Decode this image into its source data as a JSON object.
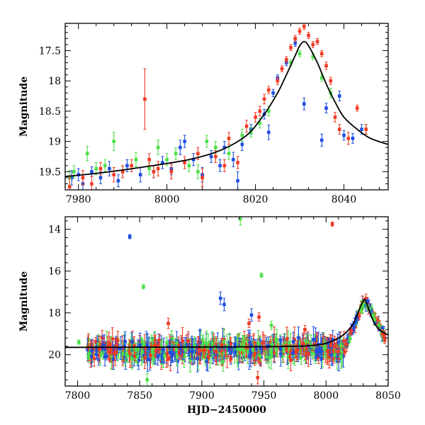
{
  "colors": {
    "blue": "#1f4fe0",
    "green": "#4ee04a",
    "red": "#f03a24",
    "model": "#000000"
  },
  "chart_data": [
    {
      "type": "scatter",
      "title": "",
      "xlabel": "",
      "ylabel": "Magnitude",
      "xlim": [
        7977,
        8050
      ],
      "ylim": [
        19.8,
        17.05
      ],
      "y_inverted": true,
      "xticks": [
        7980,
        8000,
        8020,
        8040
      ],
      "xtick_labels": [
        "7980",
        "8000",
        "8020",
        "8040"
      ],
      "yticks": [
        17.5,
        18,
        18.5,
        19,
        19.5
      ],
      "ytick_labels": [
        "17.5",
        "18",
        "18.5",
        "19",
        "19.5"
      ],
      "model_curve": {
        "x": [
          7977,
          7985,
          7995,
          8005,
          8012,
          8018,
          8022,
          8025,
          8027,
          8029,
          8030,
          8031,
          8032,
          8034,
          8036,
          8038,
          8040,
          8043,
          8046,
          8050
        ],
        "y": [
          19.58,
          19.52,
          19.42,
          19.3,
          19.15,
          18.9,
          18.55,
          18.2,
          17.9,
          17.58,
          17.42,
          17.35,
          17.42,
          17.7,
          18.05,
          18.35,
          18.6,
          18.8,
          18.95,
          19.05
        ]
      },
      "series": [
        {
          "color": "blue",
          "points": [
            {
              "x": 7978.5,
              "y": 19.6,
              "e": 0.12
            },
            {
              "x": 7980,
              "y": 19.55,
              "e": 0.1
            },
            {
              "x": 7981,
              "y": 19.7,
              "e": 0.15
            },
            {
              "x": 7983,
              "y": 19.5,
              "e": 0.08
            },
            {
              "x": 7985,
              "y": 19.6,
              "e": 0.1
            },
            {
              "x": 7987,
              "y": 19.45,
              "e": 0.12
            },
            {
              "x": 7989,
              "y": 19.65,
              "e": 0.1
            },
            {
              "x": 7991,
              "y": 19.4,
              "e": 0.1
            },
            {
              "x": 7994,
              "y": 19.55,
              "e": 0.12
            },
            {
              "x": 7997,
              "y": 19.5,
              "e": 0.1
            },
            {
              "x": 7999,
              "y": 19.35,
              "e": 0.1
            },
            {
              "x": 8001,
              "y": 19.45,
              "e": 0.1
            },
            {
              "x": 8003,
              "y": 19.1,
              "e": 0.12
            },
            {
              "x": 8004,
              "y": 19.0,
              "e": 0.1
            },
            {
              "x": 8006,
              "y": 19.3,
              "e": 0.1
            },
            {
              "x": 8008,
              "y": 19.55,
              "e": 0.12
            },
            {
              "x": 8010,
              "y": 19.25,
              "e": 0.1
            },
            {
              "x": 8012,
              "y": 19.4,
              "e": 0.1
            },
            {
              "x": 8013,
              "y": 19.1,
              "e": 0.1
            },
            {
              "x": 8015,
              "y": 19.3,
              "e": 0.12
            },
            {
              "x": 8016,
              "y": 19.65,
              "e": 0.15
            },
            {
              "x": 8017,
              "y": 19.05,
              "e": 0.1
            },
            {
              "x": 8019,
              "y": 18.8,
              "e": 0.08
            },
            {
              "x": 8022,
              "y": 18.55,
              "e": 0.08
            },
            {
              "x": 8023,
              "y": 18.85,
              "e": 0.12
            },
            {
              "x": 8024,
              "y": 18.2,
              "e": 0.06
            },
            {
              "x": 8025,
              "y": 17.95,
              "e": 0.05
            },
            {
              "x": 8027,
              "y": 17.7,
              "e": 0.05
            },
            {
              "x": 8029,
              "y": 17.38,
              "e": 0.05
            },
            {
              "x": 8031,
              "y": 18.38,
              "e": 0.1
            },
            {
              "x": 8035,
              "y": 18.98,
              "e": 0.1
            },
            {
              "x": 8036,
              "y": 18.45,
              "e": 0.08
            },
            {
              "x": 8039,
              "y": 18.25,
              "e": 0.08
            },
            {
              "x": 8040,
              "y": 18.9,
              "e": 0.08
            },
            {
              "x": 8042,
              "y": 18.95,
              "e": 0.08
            },
            {
              "x": 8044,
              "y": 18.8,
              "e": 0.08
            }
          ]
        },
        {
          "color": "green",
          "points": [
            {
              "x": 7978,
              "y": 19.6,
              "e": 0.12
            },
            {
              "x": 7979,
              "y": 19.5,
              "e": 0.1
            },
            {
              "x": 7982,
              "y": 19.2,
              "e": 0.12
            },
            {
              "x": 7984,
              "y": 19.45,
              "e": 0.1
            },
            {
              "x": 7986,
              "y": 19.4,
              "e": 0.1
            },
            {
              "x": 7988,
              "y": 19.0,
              "e": 0.15
            },
            {
              "x": 7990,
              "y": 19.5,
              "e": 0.1
            },
            {
              "x": 7993,
              "y": 19.3,
              "e": 0.12
            },
            {
              "x": 7996,
              "y": 19.45,
              "e": 0.1
            },
            {
              "x": 7998,
              "y": 19.1,
              "e": 0.12
            },
            {
              "x": 8000,
              "y": 19.3,
              "e": 0.1
            },
            {
              "x": 8002,
              "y": 19.2,
              "e": 0.1
            },
            {
              "x": 8005,
              "y": 19.4,
              "e": 0.1
            },
            {
              "x": 8007,
              "y": 19.5,
              "e": 0.12
            },
            {
              "x": 8009,
              "y": 19.0,
              "e": 0.1
            },
            {
              "x": 8011,
              "y": 19.1,
              "e": 0.1
            },
            {
              "x": 8014,
              "y": 19.2,
              "e": 0.1
            },
            {
              "x": 8017,
              "y": 18.9,
              "e": 0.1
            },
            {
              "x": 8019,
              "y": 18.85,
              "e": 0.08
            },
            {
              "x": 8021,
              "y": 18.7,
              "e": 0.08
            },
            {
              "x": 8023,
              "y": 18.5,
              "e": 0.08
            },
            {
              "x": 8028,
              "y": 17.7,
              "e": 0.05
            },
            {
              "x": 8030,
              "y": 17.55,
              "e": 0.05
            },
            {
              "x": 8033,
              "y": 17.6,
              "e": 0.05
            },
            {
              "x": 8035,
              "y": 17.95,
              "e": 0.06
            },
            {
              "x": 8037,
              "y": 18.2,
              "e": 0.08
            },
            {
              "x": 8045,
              "y": 18.8,
              "e": 0.08
            }
          ]
        },
        {
          "color": "red",
          "points": [
            {
              "x": 7978,
              "y": 19.75,
              "e": 0.15
            },
            {
              "x": 7981,
              "y": 19.6,
              "e": 0.12
            },
            {
              "x": 7983,
              "y": 19.7,
              "e": 0.12
            },
            {
              "x": 7985,
              "y": 19.45,
              "e": 0.1
            },
            {
              "x": 7988,
              "y": 19.55,
              "e": 0.12
            },
            {
              "x": 7990,
              "y": 19.5,
              "e": 0.1
            },
            {
              "x": 7992,
              "y": 19.4,
              "e": 0.1
            },
            {
              "x": 7995,
              "y": 18.3,
              "e": 0.5
            },
            {
              "x": 7996,
              "y": 19.3,
              "e": 0.1
            },
            {
              "x": 7997,
              "y": 19.5,
              "e": 0.1
            },
            {
              "x": 7998,
              "y": 19.45,
              "e": 0.12
            },
            {
              "x": 8001,
              "y": 19.5,
              "e": 0.12
            },
            {
              "x": 8004,
              "y": 19.35,
              "e": 0.1
            },
            {
              "x": 8007,
              "y": 19.2,
              "e": 0.1
            },
            {
              "x": 8008,
              "y": 19.6,
              "e": 0.15
            },
            {
              "x": 8011,
              "y": 19.25,
              "e": 0.1
            },
            {
              "x": 8013,
              "y": 19.4,
              "e": 0.1
            },
            {
              "x": 8014,
              "y": 18.95,
              "e": 0.1
            },
            {
              "x": 8016,
              "y": 19.35,
              "e": 0.1
            },
            {
              "x": 8018,
              "y": 18.75,
              "e": 0.1
            },
            {
              "x": 8020,
              "y": 18.6,
              "e": 0.08
            },
            {
              "x": 8021,
              "y": 18.5,
              "e": 0.08
            },
            {
              "x": 8022,
              "y": 18.3,
              "e": 0.08
            },
            {
              "x": 8023,
              "y": 18.15,
              "e": 0.06
            },
            {
              "x": 8025,
              "y": 18.0,
              "e": 0.06
            },
            {
              "x": 8026,
              "y": 17.8,
              "e": 0.05
            },
            {
              "x": 8027,
              "y": 17.65,
              "e": 0.05
            },
            {
              "x": 8028,
              "y": 17.45,
              "e": 0.05
            },
            {
              "x": 8029,
              "y": 17.3,
              "e": 0.05
            },
            {
              "x": 8030,
              "y": 17.18,
              "e": 0.05
            },
            {
              "x": 8031,
              "y": 17.1,
              "e": 0.05
            },
            {
              "x": 8032,
              "y": 17.25,
              "e": 0.05
            },
            {
              "x": 8033,
              "y": 17.4,
              "e": 0.05
            },
            {
              "x": 8034,
              "y": 17.35,
              "e": 0.05
            },
            {
              "x": 8035,
              "y": 17.55,
              "e": 0.05
            },
            {
              "x": 8036,
              "y": 17.75,
              "e": 0.06
            },
            {
              "x": 8037,
              "y": 18.0,
              "e": 0.06
            },
            {
              "x": 8038,
              "y": 18.6,
              "e": 0.08
            },
            {
              "x": 8039,
              "y": 18.8,
              "e": 0.08
            },
            {
              "x": 8041,
              "y": 18.95,
              "e": 0.1
            },
            {
              "x": 8043,
              "y": 18.45,
              "e": 0.05
            },
            {
              "x": 8045,
              "y": 18.8,
              "e": 0.08
            }
          ]
        }
      ]
    },
    {
      "type": "scatter",
      "title": "",
      "xlabel": "HJD−2450000",
      "ylabel": "Magnitude",
      "xlim": [
        7790,
        8050
      ],
      "ylim": [
        21.5,
        13.4
      ],
      "y_inverted": true,
      "xticks": [
        7800,
        7850,
        7900,
        7950,
        8000,
        8050
      ],
      "xtick_labels": [
        "7800",
        "7850",
        "7900",
        "7950",
        "8000",
        "8050"
      ],
      "yticks": [
        14,
        16,
        18,
        20
      ],
      "ytick_labels": [
        "14",
        "16",
        "18",
        "20"
      ],
      "model_curve": {
        "x": [
          7790,
          7850,
          7950,
          7990,
          8005,
          8015,
          8022,
          8027,
          8030,
          8031,
          8033,
          8036,
          8040,
          8045,
          8050
        ],
        "y": [
          19.65,
          19.64,
          19.62,
          19.55,
          19.35,
          19.0,
          18.5,
          17.8,
          17.42,
          17.35,
          17.6,
          18.1,
          18.6,
          18.9,
          19.05
        ]
      },
      "baseline": {
        "x_from": 7808,
        "x_to": 8015,
        "y_mean": 19.75,
        "y_spread": 0.45
      },
      "outliers": [
        {
          "color": "blue",
          "x": 7842,
          "y": 14.35,
          "e": 0.1
        },
        {
          "color": "green",
          "x": 7853,
          "y": 16.75,
          "e": 0.1
        },
        {
          "color": "green",
          "x": 7931,
          "y": 13.5,
          "e": 0.3
        },
        {
          "color": "green",
          "x": 7948,
          "y": 16.2,
          "e": 0.1
        },
        {
          "color": "red",
          "x": 8005,
          "y": 13.75,
          "e": 0.1
        },
        {
          "color": "blue",
          "x": 7915,
          "y": 17.3,
          "e": 0.3
        },
        {
          "color": "blue",
          "x": 7918,
          "y": 17.6,
          "e": 0.3
        },
        {
          "color": "blue",
          "x": 7940,
          "y": 18.1,
          "e": 0.3
        },
        {
          "color": "red",
          "x": 7873,
          "y": 18.5,
          "e": 0.25
        },
        {
          "color": "red",
          "x": 7938,
          "y": 18.5,
          "e": 0.2
        },
        {
          "color": "green",
          "x": 7956,
          "y": 18.6,
          "e": 0.2
        },
        {
          "color": "red",
          "x": 7946,
          "y": 18.2,
          "e": 0.2
        },
        {
          "color": "green",
          "x": 7801,
          "y": 19.4,
          "e": 0.1
        },
        {
          "color": "red",
          "x": 7983,
          "y": 18.8,
          "e": 0.2
        },
        {
          "color": "green",
          "x": 7856,
          "y": 21.2,
          "e": 0.3
        },
        {
          "color": "red",
          "x": 7945,
          "y": 21.1,
          "e": 0.3
        }
      ]
    }
  ]
}
